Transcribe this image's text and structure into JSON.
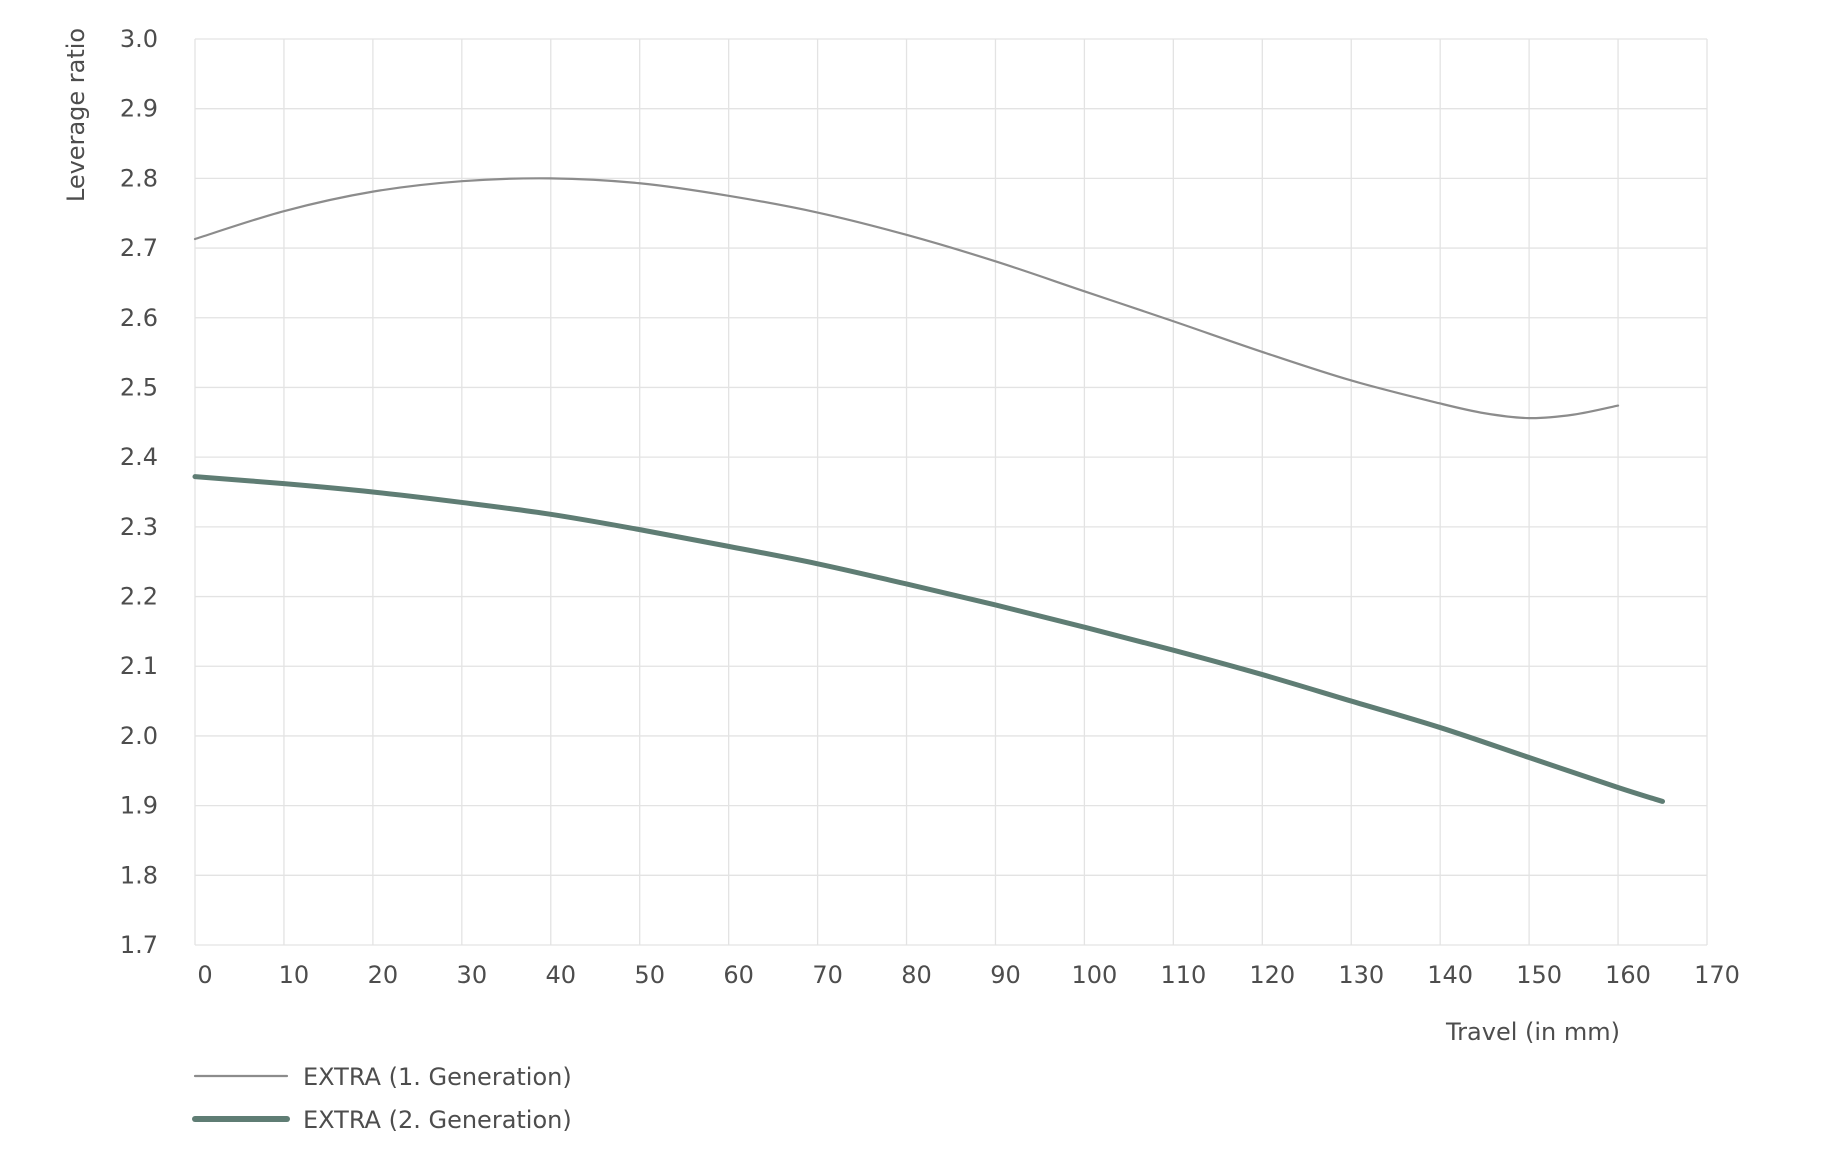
{
  "chart_data": {
    "type": "line",
    "title": "",
    "xlabel": "Travel (in mm)",
    "ylabel": "Leverage ratio",
    "xlim": [
      0,
      170
    ],
    "ylim": [
      1.7,
      3.0
    ],
    "x_ticks": [
      "0",
      "10",
      "20",
      "30",
      "40",
      "50",
      "60",
      "70",
      "80",
      "90",
      "100",
      "110",
      "120",
      "130",
      "140",
      "150",
      "160",
      "170"
    ],
    "y_ticks": [
      "1.7",
      "1.8",
      "1.9",
      "2.0",
      "2.1",
      "2.2",
      "2.3",
      "2.4",
      "2.5",
      "2.6",
      "2.7",
      "2.8",
      "2.9",
      "3.0"
    ],
    "grid": true,
    "legend_position": "bottom-left",
    "series": [
      {
        "name": "EXTRA (1. Generation)",
        "color": "#8c8c8c",
        "style": "thin",
        "x": [
          0,
          10,
          20,
          30,
          40,
          50,
          60,
          70,
          80,
          90,
          100,
          110,
          120,
          130,
          140,
          145,
          150,
          155,
          160
        ],
        "y": [
          2.713,
          2.753,
          2.781,
          2.796,
          2.8,
          2.793,
          2.775,
          2.751,
          2.719,
          2.681,
          2.638,
          2.595,
          2.551,
          2.51,
          2.477,
          2.463,
          2.456,
          2.461,
          2.474
        ]
      },
      {
        "name": "EXTRA (2. Generation)",
        "color": "#5f7d74",
        "style": "thick",
        "x": [
          0,
          10,
          20,
          30,
          40,
          50,
          60,
          70,
          80,
          90,
          100,
          110,
          120,
          130,
          140,
          150,
          160,
          165
        ],
        "y": [
          2.372,
          2.362,
          2.35,
          2.335,
          2.318,
          2.296,
          2.272,
          2.247,
          2.218,
          2.188,
          2.156,
          2.123,
          2.088,
          2.05,
          2.012,
          1.969,
          1.926,
          1.906
        ]
      }
    ]
  }
}
